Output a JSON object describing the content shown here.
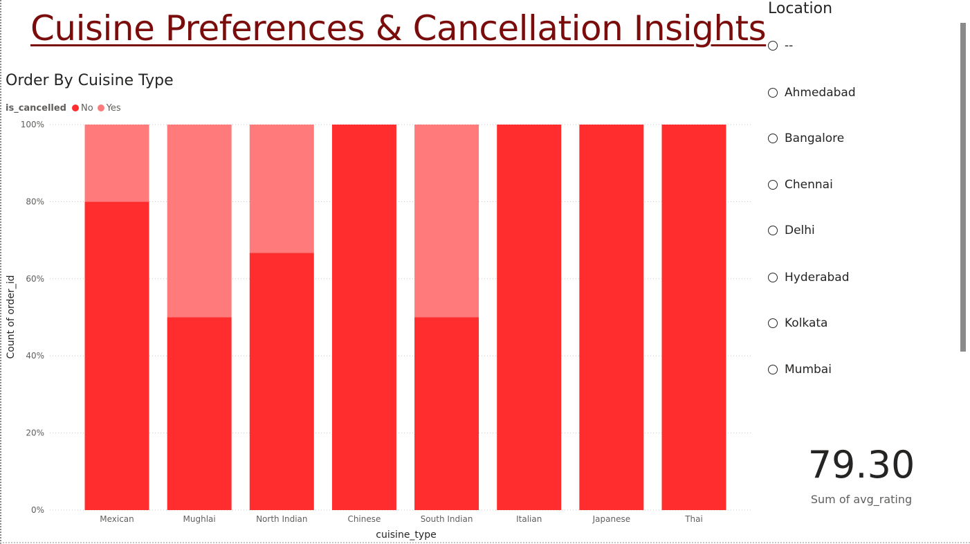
{
  "page": {
    "title": "Cuisine Preferences & Cancellation Insights"
  },
  "slicer": {
    "title": "Location",
    "options": [
      "--",
      "Ahmedabad",
      "Bangalore",
      "Chennai",
      "Delhi",
      "Hyderabad",
      "Kolkata",
      "Mumbai"
    ]
  },
  "kpi": {
    "value": "79.30",
    "label": "Sum of avg_rating"
  },
  "chart_data": {
    "type": "bar",
    "stacked": "100%",
    "title": "Order By Cuisine Type",
    "legend_title": "is_cancelled",
    "legend_position": "top-left",
    "xlabel": "cuisine_type",
    "ylabel": "Count of order_id",
    "ylim": [
      0,
      100
    ],
    "yticks": [
      "0%",
      "20%",
      "40%",
      "60%",
      "80%",
      "100%"
    ],
    "grid": true,
    "categories": [
      "Mexican",
      "Mughlai",
      "North Indian",
      "Chinese",
      "South Indian",
      "Italian",
      "Japanese",
      "Thai"
    ],
    "series": [
      {
        "name": "No",
        "color": "#ff2d2d",
        "values": [
          80,
          50,
          66.7,
          100,
          50,
          100,
          100,
          100
        ]
      },
      {
        "name": "Yes",
        "color": "#ff7b7b",
        "values": [
          20,
          50,
          33.3,
          0,
          50,
          0,
          0,
          0
        ]
      }
    ]
  }
}
